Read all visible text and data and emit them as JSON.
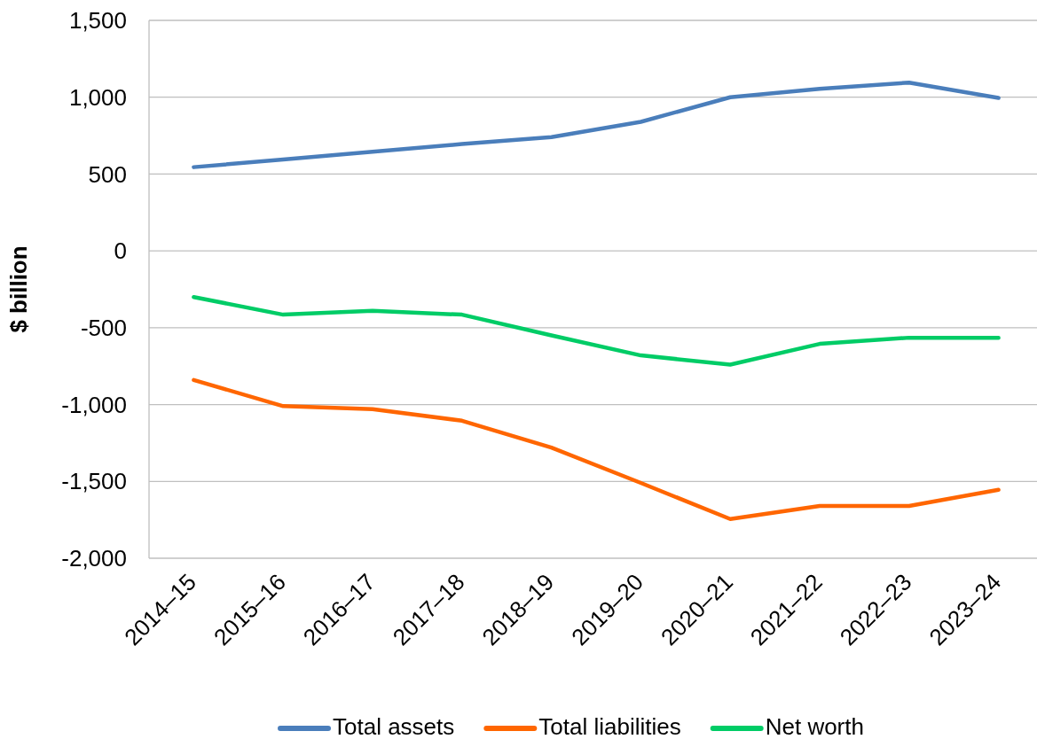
{
  "chart_data": {
    "type": "line",
    "ylabel": "$ billion",
    "categories": [
      "2014–15",
      "2015–16",
      "2016–17",
      "2017–18",
      "2018–19",
      "2019–20",
      "2020–21",
      "2021–22",
      "2022–23",
      "2023–24"
    ],
    "series": [
      {
        "name": "Total assets",
        "color": "#4a7ebb",
        "values": [
          545,
          595,
          645,
          695,
          740,
          840,
          1000,
          1055,
          1095,
          995
        ]
      },
      {
        "name": "Total liabilities",
        "color": "#ff6600",
        "values": [
          -840,
          -1010,
          -1030,
          -1105,
          -1280,
          -1510,
          -1745,
          -1660,
          -1660,
          -1555
        ]
      },
      {
        "name": "Net worth",
        "color": "#00cc66",
        "values": [
          -300,
          -415,
          -390,
          -415,
          -550,
          -680,
          -740,
          -605,
          -565,
          -565
        ]
      }
    ],
    "ylim": [
      -2000,
      1500
    ],
    "yticks": [
      {
        "value": -2000,
        "label": "-2,000"
      },
      {
        "value": -1500,
        "label": "-1,500"
      },
      {
        "value": -1000,
        "label": "-1,000"
      },
      -500,
      0,
      500,
      {
        "value": 1000,
        "label": "1,000"
      },
      {
        "value": 1500,
        "label": "1,500"
      }
    ],
    "grid": "y",
    "legend": "bottom"
  }
}
